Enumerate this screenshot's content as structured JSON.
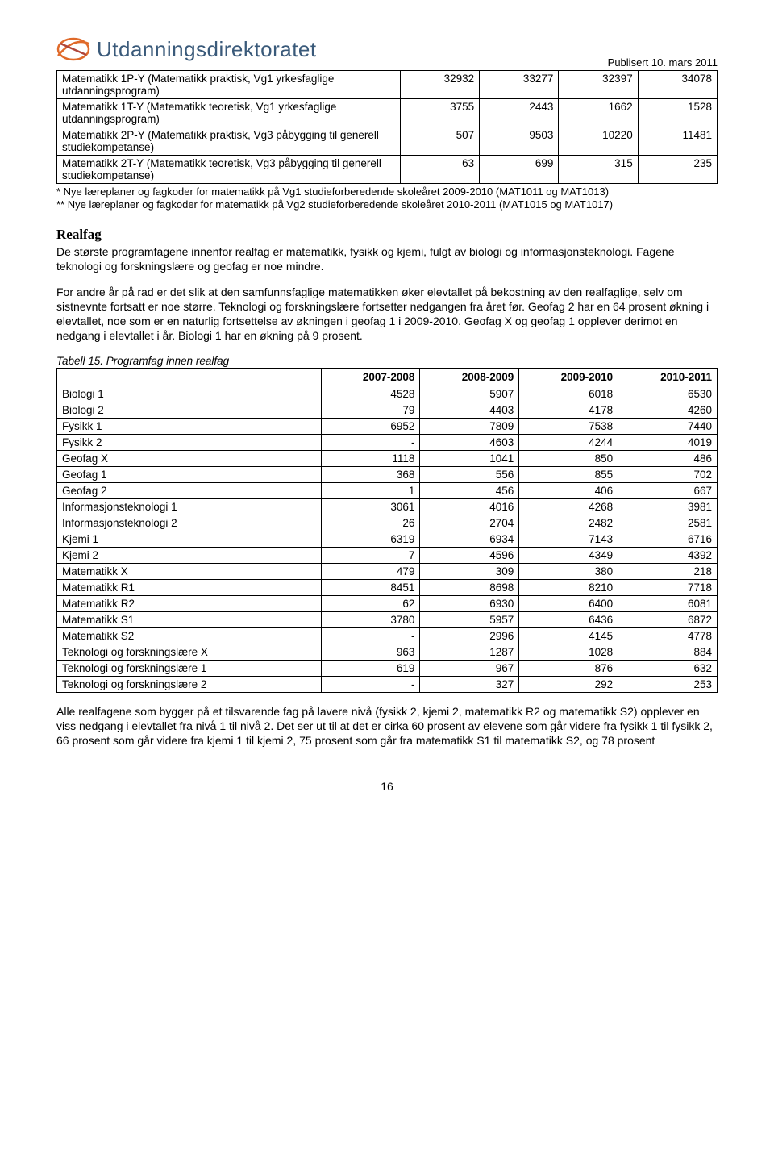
{
  "header": {
    "logo_text": "Utdanningsdirektoratet",
    "logo_color": "#e06a2a",
    "logo_text_color": "#3a5a7a",
    "pubdate": "Publisert 10. mars 2011"
  },
  "table1": {
    "rows": [
      {
        "label": "Matematikk 1P-Y (Matematikk praktisk, Vg1 yrkesfaglige utdanningsprogram)",
        "c1": "32932",
        "c2": "33277",
        "c3": "32397",
        "c4": "34078"
      },
      {
        "label": "Matematikk 1T-Y (Matematikk teoretisk, Vg1 yrkesfaglige utdanningsprogram)",
        "c1": "3755",
        "c2": "2443",
        "c3": "1662",
        "c4": "1528"
      },
      {
        "label": "Matematikk 2P-Y (Matematikk praktisk, Vg3 påbygging til generell studiekompetanse)",
        "c1": "507",
        "c2": "9503",
        "c3": "10220",
        "c4": "11481"
      },
      {
        "label": "Matematikk 2T-Y (Matematikk teoretisk, Vg3 påbygging til generell studiekompetanse)",
        "c1": "63",
        "c2": "699",
        "c3": "315",
        "c4": "235"
      }
    ],
    "footnotes": [
      "* Nye læreplaner og fagkoder for matematikk på Vg1 studieforberedende skoleåret 2009-2010 (MAT1011 og MAT1013)",
      "** Nye læreplaner og fagkoder for matematikk på Vg2 studieforberedende skoleåret 2010-2011 (MAT1015 og MAT1017)"
    ]
  },
  "realfag": {
    "heading": "Realfag",
    "p1": "De største programfagene innenfor realfag er matematikk, fysikk og kjemi, fulgt av biologi og informasjonsteknologi. Fagene teknologi og forskningslære og geofag er noe mindre.",
    "p2": "For andre år på rad er det slik at den samfunnsfaglige matematikken øker elevtallet på bekostning av den realfaglige, selv om sistnevnte fortsatt er noe større. Teknologi og forskningslære fortsetter nedgangen fra året før. Geofag 2 har en 64 prosent økning i elevtallet, noe som er en naturlig fortsettelse av økningen i geofag 1 i 2009-2010. Geofag X og geofag 1 opplever derimot en nedgang i elevtallet i år. Biologi 1 har en økning på 9 prosent."
  },
  "table2": {
    "caption": "Tabell 15. Programfag innen realfag",
    "headers": [
      "2007-2008",
      "2008-2009",
      "2009-2010",
      "2010-2011"
    ],
    "rows": [
      {
        "label": "Biologi 1",
        "c": [
          "4528",
          "5907",
          "6018",
          "6530"
        ]
      },
      {
        "label": "Biologi 2",
        "c": [
          "79",
          "4403",
          "4178",
          "4260"
        ]
      },
      {
        "label": "Fysikk 1",
        "c": [
          "6952",
          "7809",
          "7538",
          "7440"
        ]
      },
      {
        "label": "Fysikk 2",
        "c": [
          "-",
          "4603",
          "4244",
          "4019"
        ]
      },
      {
        "label": "Geofag X",
        "c": [
          "1118",
          "1041",
          "850",
          "486"
        ]
      },
      {
        "label": "Geofag 1",
        "c": [
          "368",
          "556",
          "855",
          "702"
        ]
      },
      {
        "label": "Geofag 2",
        "c": [
          "1",
          "456",
          "406",
          "667"
        ]
      },
      {
        "label": "Informasjonsteknologi 1",
        "c": [
          "3061",
          "4016",
          "4268",
          "3981"
        ]
      },
      {
        "label": "Informasjonsteknologi 2",
        "c": [
          "26",
          "2704",
          "2482",
          "2581"
        ]
      },
      {
        "label": "Kjemi 1",
        "c": [
          "6319",
          "6934",
          "7143",
          "6716"
        ]
      },
      {
        "label": "Kjemi 2",
        "c": [
          "7",
          "4596",
          "4349",
          "4392"
        ]
      },
      {
        "label": "Matematikk X",
        "c": [
          "479",
          "309",
          "380",
          "218"
        ]
      },
      {
        "label": "Matematikk R1",
        "c": [
          "8451",
          "8698",
          "8210",
          "7718"
        ]
      },
      {
        "label": "Matematikk R2",
        "c": [
          "62",
          "6930",
          "6400",
          "6081"
        ]
      },
      {
        "label": "Matematikk S1",
        "c": [
          "3780",
          "5957",
          "6436",
          "6872"
        ]
      },
      {
        "label": "Matematikk S2",
        "c": [
          "-",
          "2996",
          "4145",
          "4778"
        ]
      },
      {
        "label": "Teknologi og forskningslære X",
        "c": [
          "963",
          "1287",
          "1028",
          "884"
        ]
      },
      {
        "label": "Teknologi og forskningslære 1",
        "c": [
          "619",
          "967",
          "876",
          "632"
        ]
      },
      {
        "label": "Teknologi og forskningslære 2",
        "c": [
          "-",
          "327",
          "292",
          "253"
        ]
      }
    ]
  },
  "closing_p": "Alle realfagene som bygger på et tilsvarende fag på lavere nivå (fysikk 2, kjemi 2, matematikk R2 og matematikk S2) opplever en viss nedgang i elevtallet fra nivå 1 til nivå 2. Det ser ut til at det er cirka 60 prosent av elevene som går videre fra fysikk 1 til fysikk 2, 66 prosent som går videre fra kjemi 1 til kjemi 2, 75 prosent som går fra matematikk S1 til matematikk S2, og 78 prosent",
  "pagenum": "16"
}
